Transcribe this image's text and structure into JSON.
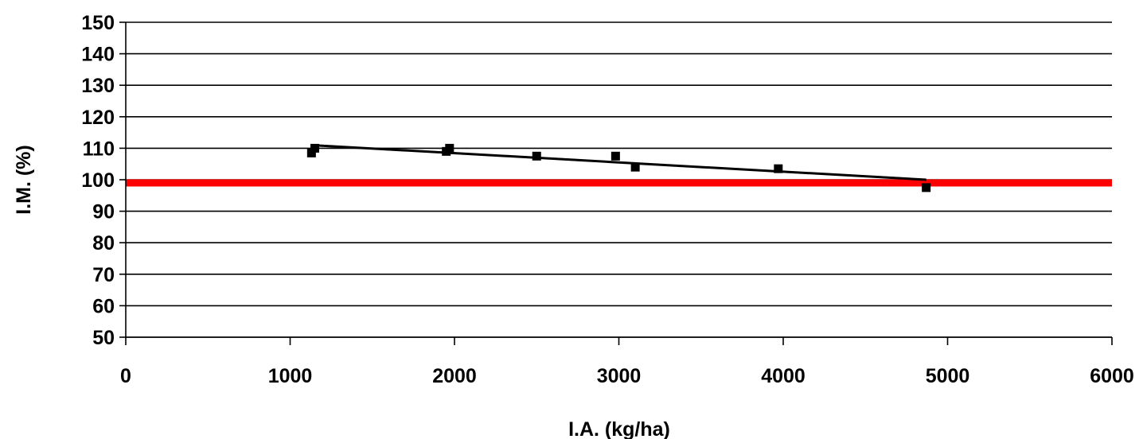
{
  "chart_data": {
    "type": "scatter",
    "title": "",
    "xlabel": "I.A. (kg/ha)",
    "ylabel": "I.M. (%)",
    "xlim": [
      0,
      6000
    ],
    "ylim": [
      50,
      150
    ],
    "x_ticks": [
      "0",
      "1000",
      "2000",
      "3000",
      "4000",
      "5000",
      "6000"
    ],
    "y_ticks": [
      "50",
      "60",
      "70",
      "80",
      "90",
      "100",
      "110",
      "120",
      "130",
      "140",
      "150"
    ],
    "grid": "horizontal",
    "points": [
      {
        "x": 1130,
        "y": 108.5
      },
      {
        "x": 1150,
        "y": 110
      },
      {
        "x": 1950,
        "y": 109
      },
      {
        "x": 1970,
        "y": 110
      },
      {
        "x": 2500,
        "y": 107.5
      },
      {
        "x": 2980,
        "y": 107.5
      },
      {
        "x": 3100,
        "y": 104
      },
      {
        "x": 3970,
        "y": 103.5
      },
      {
        "x": 4870,
        "y": 97.5
      }
    ],
    "trendline": {
      "x": [
        1130,
        4870
      ],
      "y": [
        111,
        100
      ]
    },
    "reference_line": {
      "y": 99,
      "color": "#ff0000"
    },
    "point_color": "#000000",
    "line_color": "#000000"
  }
}
